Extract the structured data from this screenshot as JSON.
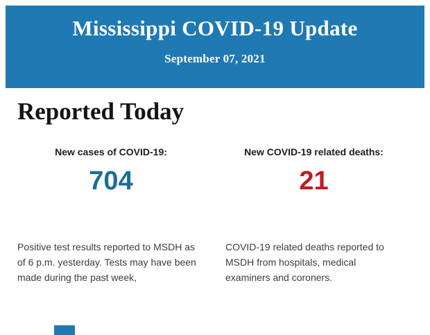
{
  "page": {
    "background_color": "#FFFFFF"
  },
  "header": {
    "title": "Mississippi COVID-19 Update",
    "date": "September 07, 2021",
    "background_color": "#1F79B3",
    "text_color": "#FFFFFF"
  },
  "main": {
    "heading": "Reported Today",
    "stats": [
      {
        "label": "New cases of COVID-19:",
        "value": "704",
        "value_color": "#1A6E96",
        "description": "Positive test results reported to MSDH as of 6 p.m. yesterday. Tests may have been made during the past week,"
      },
      {
        "label": "New COVID-19 related deaths:",
        "value": "21",
        "value_color": "#C01D24",
        "description": "COVID-19 related deaths reported to MSDH from hospitals, medical examiners and coroners."
      }
    ]
  },
  "footer": {
    "partial_element_color": "#1F79B3"
  }
}
